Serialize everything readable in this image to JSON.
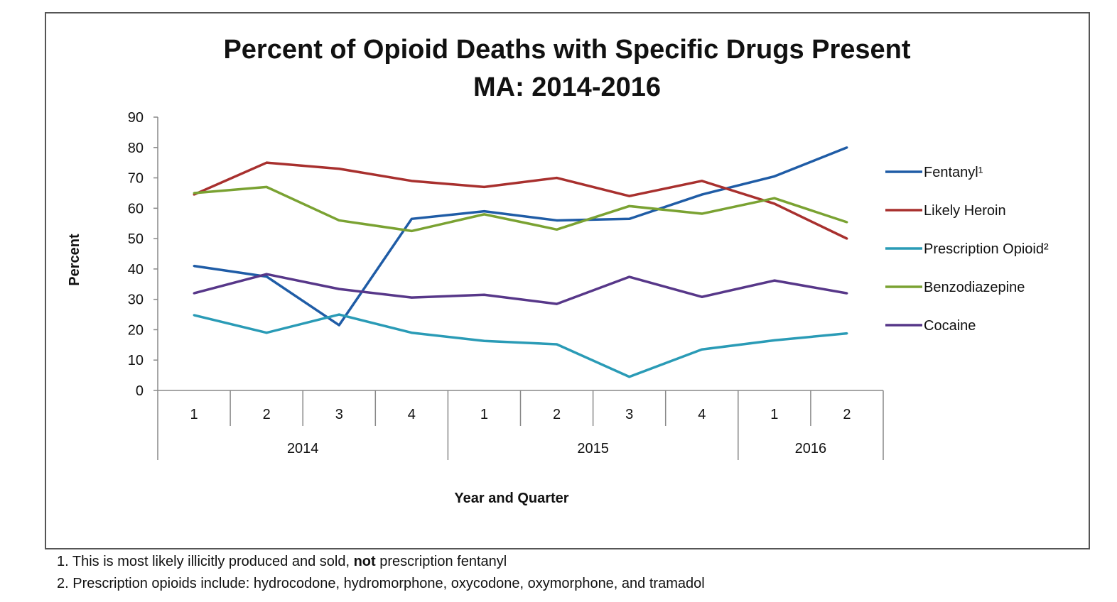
{
  "chart_data": {
    "type": "line",
    "title": "Percent of Opioid Deaths with Specific Drugs Present",
    "subtitle": "MA: 2014-2016",
    "xlabel": "Year and Quarter",
    "ylabel": "Percent",
    "ylim": [
      0,
      90
    ],
    "yticks": [
      0,
      10,
      20,
      30,
      40,
      50,
      60,
      70,
      80,
      90
    ],
    "grid": false,
    "legend_position": "right",
    "categories": [
      "1",
      "2",
      "3",
      "4",
      "1",
      "2",
      "3",
      "4",
      "1",
      "2"
    ],
    "years": [
      {
        "label": "2014",
        "quarters": 4
      },
      {
        "label": "2015",
        "quarters": 4
      },
      {
        "label": "2016",
        "quarters": 2
      }
    ],
    "series": [
      {
        "name": "Fentanyl¹",
        "color": "#1f5ca6",
        "values": [
          41,
          37.5,
          21.5,
          56.5,
          59,
          56,
          56.5,
          64.5,
          70.5,
          80
        ]
      },
      {
        "name": "Likely Heroin",
        "color": "#a8302e",
        "values": [
          64.5,
          75,
          73,
          69,
          67,
          70,
          64,
          69,
          61.5,
          50
        ]
      },
      {
        "name": "Prescription Opioid²",
        "color": "#2a9bb6",
        "values": [
          24.8,
          19,
          25,
          19,
          16.3,
          15.2,
          4.5,
          13.5,
          16.5,
          18.8
        ]
      },
      {
        "name": "Benzodiazepine",
        "color": "#7aa232",
        "values": [
          65,
          67,
          56,
          52.5,
          58,
          53,
          60.7,
          58.2,
          63.3,
          55.4
        ]
      },
      {
        "name": "Cocaine",
        "color": "#573789",
        "values": [
          32,
          38.3,
          33.4,
          30.6,
          31.5,
          28.5,
          37.4,
          30.8,
          36.2,
          32
        ]
      }
    ]
  },
  "footnotes": {
    "note1": {
      "before": "1. This is most likely illicitly produced and sold, ",
      "bold": "not",
      "after": " prescription fentanyl"
    },
    "note2": "2. Prescription opioids include: hydrocodone, hydromorphone, oxycodone, oxymorphone, and tramadol"
  }
}
